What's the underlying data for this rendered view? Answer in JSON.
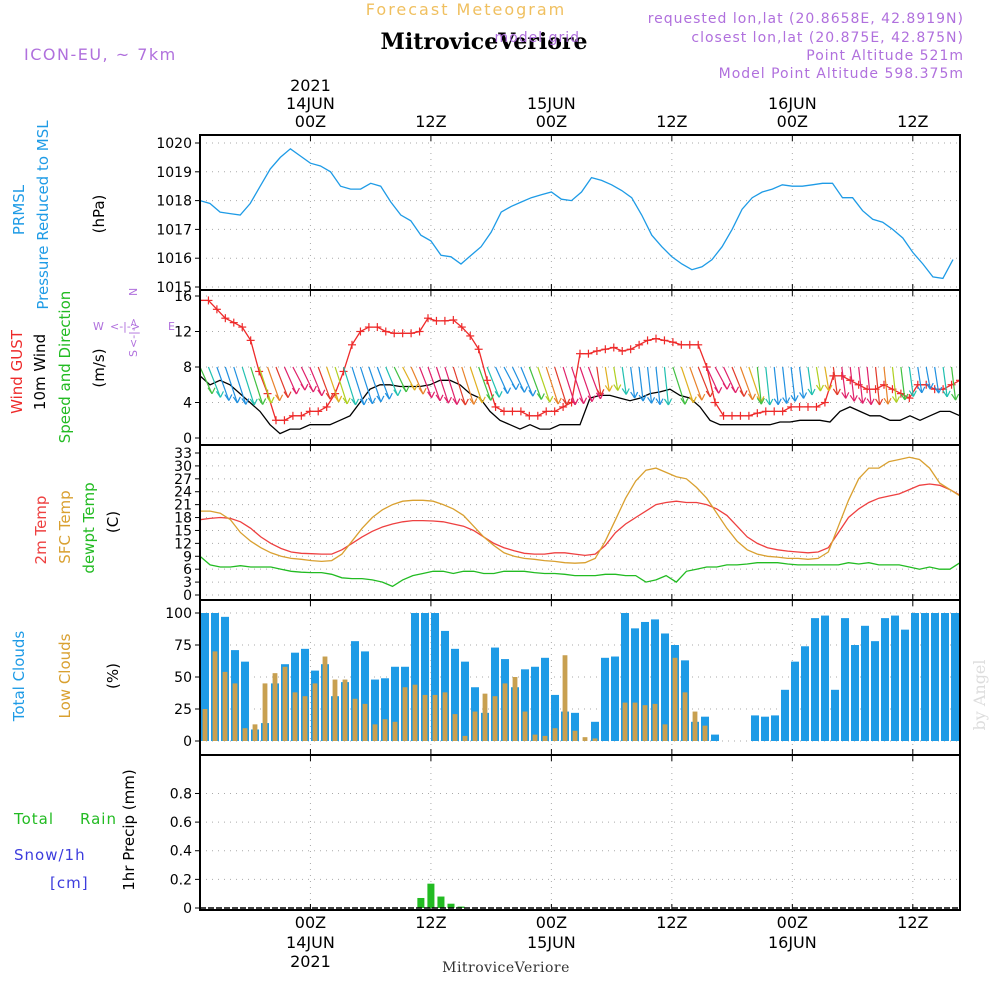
{
  "header": {
    "app_title": "Forecast Meteogram",
    "location_title": "MitroviceVeriore",
    "model_label": "ICON-EU, ~ 7km",
    "requested_lonlat": "requested lon,lat (20.8658E, 42.8919N)",
    "closest_lonlat": "closest lon,lat (20.875E, 42.875N)",
    "grid_label": "model grid",
    "point_altitude": "Point Altitude 521m",
    "model_point_altitude": "Model Point Altitude 598.375m"
  },
  "footer": {
    "location": "MitroviceVeriore",
    "watermark": "by Angel"
  },
  "time_axis": {
    "year": "2021",
    "labels": [
      {
        "t": 12,
        "hour": "00Z",
        "date": "14JUN",
        "year": "2021"
      },
      {
        "t": 24,
        "hour": "12Z"
      },
      {
        "t": 36,
        "hour": "00Z",
        "date": "15JUN"
      },
      {
        "t": 48,
        "hour": "12Z"
      },
      {
        "t": 60,
        "hour": "00Z",
        "date": "16JUN"
      },
      {
        "t": 72,
        "hour": "12Z"
      }
    ],
    "range_hours": [
      1,
      76.7
    ]
  },
  "colors": {
    "pressure": "#1e9be6",
    "gust": "#ee2a2a",
    "wind10m": "#000000",
    "temp2m": "#ee4040",
    "sfc_temp": "#d9a030",
    "dewpoint": "#22bb22",
    "total_clouds": "#1e9be6",
    "low_clouds": "#c8a050",
    "rain": "#22bb22",
    "snow": "#3c3cdd",
    "purple": "#b070dd",
    "title_orange": "#f0c060"
  },
  "panels": {
    "pressure": {
      "label1": "PRMSL",
      "label2": "Pressure Reduced to MSL",
      "unit": "(hPa)"
    },
    "wind": {
      "label_gust": "Wind GUST",
      "label_10m": "10m Wind",
      "label_speed": "Speed and Direction",
      "unit": "(m/s)",
      "compass": {
        "n": "N",
        "w": "W",
        "e": "E",
        "s": "S"
      }
    },
    "temp": {
      "label_2m": "2m Temp",
      "label_sfc": "SFC Temp",
      "label_dew": "dewpt Temp",
      "unit": "(C)"
    },
    "clouds": {
      "label_total": "Total Clouds",
      "label_low": "Low Clouds",
      "unit": "(%)"
    },
    "precip": {
      "label_total": "Total",
      "label_rain": "Rain",
      "label_snow": "Snow/1h",
      "label_cm": "[cm]",
      "label_axis": "1hr Precip (mm)"
    }
  },
  "chart_data": [
    {
      "type": "line",
      "title": "PRMSL Pressure Reduced to MSL",
      "ylabel": "(hPa)",
      "ylim": [
        1015,
        1020
      ],
      "yticks": [
        1015,
        1016,
        1017,
        1018,
        1019,
        1020
      ],
      "grid": true,
      "series": [
        {
          "name": "PRMSL",
          "x": [
            1,
            2,
            3,
            4,
            5,
            6,
            7,
            8,
            9,
            10,
            11,
            12,
            13,
            14,
            15,
            16,
            17,
            18,
            19,
            20,
            21,
            22,
            23,
            24,
            25,
            26,
            27,
            28,
            29,
            30,
            31,
            32,
            33,
            34,
            35,
            36,
            37,
            38,
            39,
            40,
            41,
            42,
            43,
            44,
            45,
            46,
            47,
            48,
            49,
            50,
            51,
            52,
            53,
            54,
            55,
            56,
            57,
            58,
            59,
            60,
            61,
            62,
            63,
            64,
            65,
            66,
            67,
            68,
            69,
            70,
            71,
            72,
            73,
            74,
            75,
            76
          ],
          "values": [
            1018.0,
            1017.9,
            1017.6,
            1017.55,
            1017.5,
            1017.9,
            1018.5,
            1019.1,
            1019.5,
            1019.8,
            1019.55,
            1019.3,
            1019.2,
            1019.0,
            1018.5,
            1018.4,
            1018.4,
            1018.6,
            1018.5,
            1017.95,
            1017.5,
            1017.3,
            1016.8,
            1016.6,
            1016.1,
            1016.05,
            1015.8,
            1016.1,
            1016.4,
            1016.9,
            1017.6,
            1017.8,
            1017.95,
            1018.1,
            1018.2,
            1018.3,
            1018.05,
            1018.0,
            1018.3,
            1018.8,
            1018.7,
            1018.55,
            1018.35,
            1018.1,
            1017.5,
            1016.8,
            1016.4,
            1016.05,
            1015.8,
            1015.6,
            1015.7,
            1015.95,
            1016.4,
            1017.0,
            1017.7,
            1018.1,
            1018.3,
            1018.4,
            1018.55,
            1018.5,
            1018.5,
            1018.55,
            1018.6,
            1018.6,
            1018.1,
            1018.1,
            1017.65,
            1017.35,
            1017.25,
            1017.0,
            1016.7,
            1016.2,
            1015.8,
            1015.35,
            1015.3,
            1015.95
          ]
        }
      ]
    },
    {
      "type": "line",
      "title": "Wind GUST / 10m Wind Speed and Direction",
      "ylabel": "(m/s)",
      "ylim": [
        0,
        16
      ],
      "yticks": [
        0,
        4,
        8,
        12,
        16
      ],
      "grid": true,
      "series": [
        {
          "name": "Wind GUST",
          "values": [
            15.5,
            15.5,
            14.5,
            13.5,
            13.0,
            12.5,
            11.0,
            7.5,
            5.0,
            2.0,
            2.0,
            2.5,
            2.5,
            3.0,
            3.0,
            3.5,
            5.0,
            7.5,
            10.5,
            12.0,
            12.5,
            12.5,
            12.0,
            11.8,
            11.8,
            11.8,
            12.0,
            13.5,
            13.2,
            13.2,
            13.3,
            12.5,
            11.5,
            10.0,
            6.5,
            3.5,
            3.0,
            3.0,
            3.0,
            2.5,
            2.5,
            3.0,
            3.0,
            3.5,
            4.0,
            9.5,
            9.5,
            9.8,
            10.0,
            10.2,
            9.8,
            10.0,
            10.5,
            11.0,
            11.2,
            11.0,
            10.8,
            10.5,
            10.5,
            10.5,
            8.0,
            4.0,
            2.5,
            2.5,
            2.5,
            2.5,
            2.8,
            3.0,
            3.0,
            3.0,
            3.5,
            3.5,
            3.5,
            3.5,
            4.0,
            7.0,
            7.0,
            6.5,
            6.0,
            5.5,
            5.5,
            6.0,
            5.5,
            5.0,
            4.5,
            6.0,
            6.0,
            5.5,
            5.5,
            6.0,
            6.5
          ]
        },
        {
          "name": "10m Wind",
          "values": [
            7.0,
            6.0,
            6.5,
            6.0,
            5.0,
            4.0,
            3.0,
            1.5,
            0.5,
            1.0,
            1.0,
            1.5,
            1.5,
            1.5,
            2.0,
            2.5,
            4.0,
            5.5,
            6.0,
            6.0,
            5.8,
            5.8,
            5.8,
            6.0,
            6.5,
            6.5,
            6.0,
            5.0,
            4.5,
            3.0,
            2.0,
            1.5,
            1.0,
            1.5,
            1.0,
            1.0,
            1.5,
            1.5,
            1.5,
            4.5,
            4.8,
            4.8,
            4.5,
            4.2,
            4.5,
            5.0,
            5.2,
            5.5,
            4.8,
            4.5,
            3.5,
            2.0,
            1.5,
            1.5,
            1.5,
            1.5,
            1.5,
            1.5,
            1.8,
            1.8,
            2.0,
            2.0,
            2.0,
            1.8,
            3.0,
            3.5,
            3.0,
            2.5,
            2.5,
            2.0,
            2.0,
            2.5,
            2.0,
            2.5,
            3.0,
            3.0,
            2.5
          ]
        },
        {
          "name": "Speed and Direction",
          "note": "direction arrows"
        }
      ]
    },
    {
      "type": "line",
      "title": "Temperatures",
      "ylabel": "(C)",
      "ylim": [
        0,
        33
      ],
      "yticks": [
        0,
        3,
        6,
        9,
        12,
        15,
        18,
        21,
        24,
        27,
        30,
        33
      ],
      "grid": true,
      "series": [
        {
          "name": "2m Temp",
          "values": [
            17.5,
            17.8,
            18.0,
            17.8,
            17.0,
            15.5,
            13.5,
            12.0,
            10.8,
            10.0,
            9.7,
            9.6,
            9.5,
            9.5,
            10.5,
            12.0,
            13.5,
            14.8,
            15.8,
            16.5,
            17.0,
            17.3,
            17.3,
            17.2,
            17.0,
            16.5,
            16.0,
            15.0,
            13.5,
            12.0,
            11.0,
            10.3,
            9.7,
            9.5,
            9.5,
            9.8,
            9.8,
            9.5,
            9.2,
            9.5,
            11.5,
            14.5,
            16.5,
            18.0,
            19.5,
            21.0,
            21.5,
            21.8,
            21.5,
            21.5,
            21.0,
            20.0,
            18.5,
            16.0,
            13.5,
            12.0,
            11.0,
            10.5,
            10.2,
            10.0,
            9.8,
            10.0,
            11.0,
            14.5,
            18.0,
            20.0,
            21.5,
            22.5,
            23.0,
            23.5,
            24.5,
            25.5,
            25.8,
            25.5,
            24.5,
            23.2
          ]
        },
        {
          "name": "SFC Temp",
          "values": [
            19.5,
            19.5,
            19.0,
            17.5,
            14.5,
            12.5,
            11.0,
            9.8,
            9.0,
            8.5,
            8.3,
            8.0,
            7.8,
            8.0,
            9.5,
            12.5,
            15.5,
            18.0,
            19.8,
            21.0,
            21.8,
            22.0,
            22.0,
            21.8,
            21.0,
            20.0,
            18.5,
            16.0,
            13.5,
            11.5,
            9.8,
            9.0,
            8.5,
            8.3,
            8.0,
            7.8,
            7.5,
            7.4,
            7.5,
            8.5,
            12.5,
            17.5,
            22.5,
            26.5,
            29.0,
            29.5,
            28.5,
            27.5,
            27.0,
            25.0,
            22.5,
            19.0,
            15.5,
            12.5,
            10.5,
            9.5,
            9.0,
            8.8,
            8.5,
            8.5,
            8.3,
            8.5,
            10.0,
            16.0,
            22.0,
            27.0,
            29.5,
            29.5,
            31.0,
            31.5,
            32.0,
            31.5,
            29.5,
            26.0,
            24.5,
            23.0
          ]
        },
        {
          "name": "dewpt Temp",
          "values": [
            9.0,
            7.0,
            6.5,
            6.5,
            6.8,
            6.5,
            6.5,
            6.5,
            6.0,
            5.5,
            5.3,
            5.2,
            5.2,
            4.8,
            4.0,
            3.8,
            3.8,
            3.5,
            3.0,
            2.0,
            3.5,
            4.5,
            5.0,
            5.5,
            5.5,
            5.0,
            5.5,
            5.5,
            5.0,
            5.0,
            5.5,
            5.5,
            5.5,
            5.2,
            5.0,
            5.0,
            4.8,
            4.5,
            4.5,
            4.5,
            4.8,
            4.8,
            4.5,
            4.5,
            3.0,
            3.5,
            4.5,
            3.0,
            5.5,
            6.0,
            6.5,
            6.5,
            7.0,
            7.0,
            7.2,
            7.5,
            7.5,
            7.5,
            7.2,
            7.0,
            7.0,
            7.0,
            7.0,
            7.0,
            7.5,
            7.2,
            7.5,
            7.0,
            7.0,
            7.0,
            6.5,
            6.0,
            6.5,
            6.0,
            6.0,
            7.5
          ]
        }
      ]
    },
    {
      "type": "bar",
      "title": "Clouds",
      "ylabel": "(%)",
      "ylim": [
        0,
        100
      ],
      "yticks": [
        0,
        25,
        50,
        75,
        100
      ],
      "grid": true,
      "series": [
        {
          "name": "Total Clouds",
          "values": [
            100,
            100,
            97,
            71,
            62,
            9,
            14,
            45,
            60,
            69,
            72,
            55,
            60,
            35,
            46,
            78,
            70,
            48,
            49,
            58,
            58,
            100,
            100,
            100,
            86,
            72,
            62,
            42,
            22,
            73,
            64,
            42,
            56,
            58,
            65,
            36,
            23,
            22,
            0,
            15,
            65,
            66,
            100,
            88,
            93,
            95,
            84,
            75,
            63,
            15,
            19,
            5,
            0,
            0,
            0,
            20,
            19,
            20,
            40,
            62,
            74,
            96,
            98,
            40,
            96,
            75,
            90,
            78,
            96,
            98,
            87,
            100,
            100,
            100,
            100,
            100
          ]
        },
        {
          "name": "Low Clouds",
          "values": [
            25,
            70,
            54,
            45,
            10,
            13,
            45,
            53,
            58,
            38,
            35,
            45,
            66,
            48,
            48,
            33,
            29,
            13,
            17,
            15,
            42,
            44,
            36,
            36,
            38,
            21,
            4,
            23,
            37,
            35,
            45,
            50,
            23,
            5,
            4,
            10,
            67,
            8,
            3,
            2,
            0,
            0,
            30,
            30,
            28,
            29,
            13,
            65,
            38,
            23,
            12,
            0,
            0,
            0,
            0,
            0,
            0,
            0,
            0,
            0,
            0,
            0,
            0,
            0,
            0,
            0,
            0,
            0,
            0,
            0,
            0,
            0,
            0,
            0,
            0,
            0
          ]
        }
      ]
    },
    {
      "type": "bar",
      "title": "1hr Precip",
      "ylabel": "1hr Precip (mm)",
      "ylim": [
        0,
        0.95
      ],
      "yticks": [
        0,
        0.2,
        0.4,
        0.6,
        0.8
      ],
      "grid": true,
      "series": [
        {
          "name": "Total Rain",
          "x": [
            23,
            24,
            25,
            26,
            27
          ],
          "values": [
            0.07,
            0.17,
            0.08,
            0.03,
            0.01
          ]
        },
        {
          "name": "Snow/1h",
          "values": []
        }
      ]
    }
  ]
}
